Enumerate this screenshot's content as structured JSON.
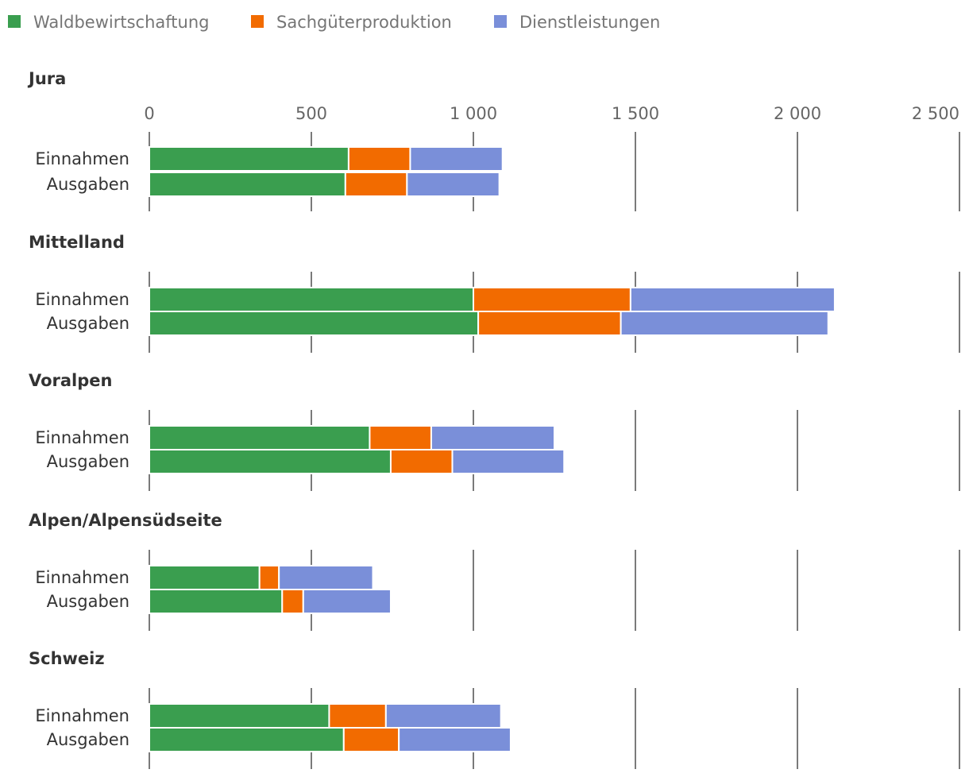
{
  "chart_data": {
    "type": "bar",
    "orientation": "horizontal",
    "stacked": true,
    "legend": "top-left",
    "grid": true,
    "xlim": [
      0,
      2500
    ],
    "ticks": [
      0,
      500,
      1000,
      1500,
      2000,
      2500
    ],
    "tick_labels": [
      "0",
      "500",
      "1 000",
      "1 500",
      "2 000",
      "2 500"
    ],
    "colors": {
      "Waldbewirtschaftung": "#3a9e4f",
      "Sachgüterproduktion": "#f26b00",
      "Dienstleistungen": "#7a8fd9"
    },
    "series_names": [
      "Waldbewirtschaftung",
      "Sachgüterproduktion",
      "Dienstleistungen"
    ],
    "row_labels": [
      "Einnahmen",
      "Ausgaben"
    ],
    "panels": [
      {
        "title": "Jura",
        "rows": [
          {
            "label": "Einnahmen",
            "values": [
              615,
              190,
              285
            ]
          },
          {
            "label": "Ausgaben",
            "values": [
              605,
              190,
              285
            ]
          }
        ]
      },
      {
        "title": "Mittelland",
        "rows": [
          {
            "label": "Einnahmen",
            "values": [
              1000,
              485,
              630
            ]
          },
          {
            "label": "Ausgaben",
            "values": [
              1015,
              440,
              640
            ]
          }
        ]
      },
      {
        "title": "Voralpen",
        "rows": [
          {
            "label": "Einnahmen",
            "values": [
              680,
              190,
              380
            ]
          },
          {
            "label": "Ausgaben",
            "values": [
              745,
              190,
              345
            ]
          }
        ]
      },
      {
        "title": "Alpen/Alpensüdseite",
        "rows": [
          {
            "label": "Einnahmen",
            "values": [
              340,
              60,
              290
            ]
          },
          {
            "label": "Ausgaben",
            "values": [
              410,
              65,
              270
            ]
          }
        ]
      },
      {
        "title": "Schweiz",
        "rows": [
          {
            "label": "Einnahmen",
            "values": [
              555,
              175,
              355
            ]
          },
          {
            "label": "Ausgaben",
            "values": [
              600,
              170,
              345
            ]
          }
        ]
      }
    ]
  }
}
